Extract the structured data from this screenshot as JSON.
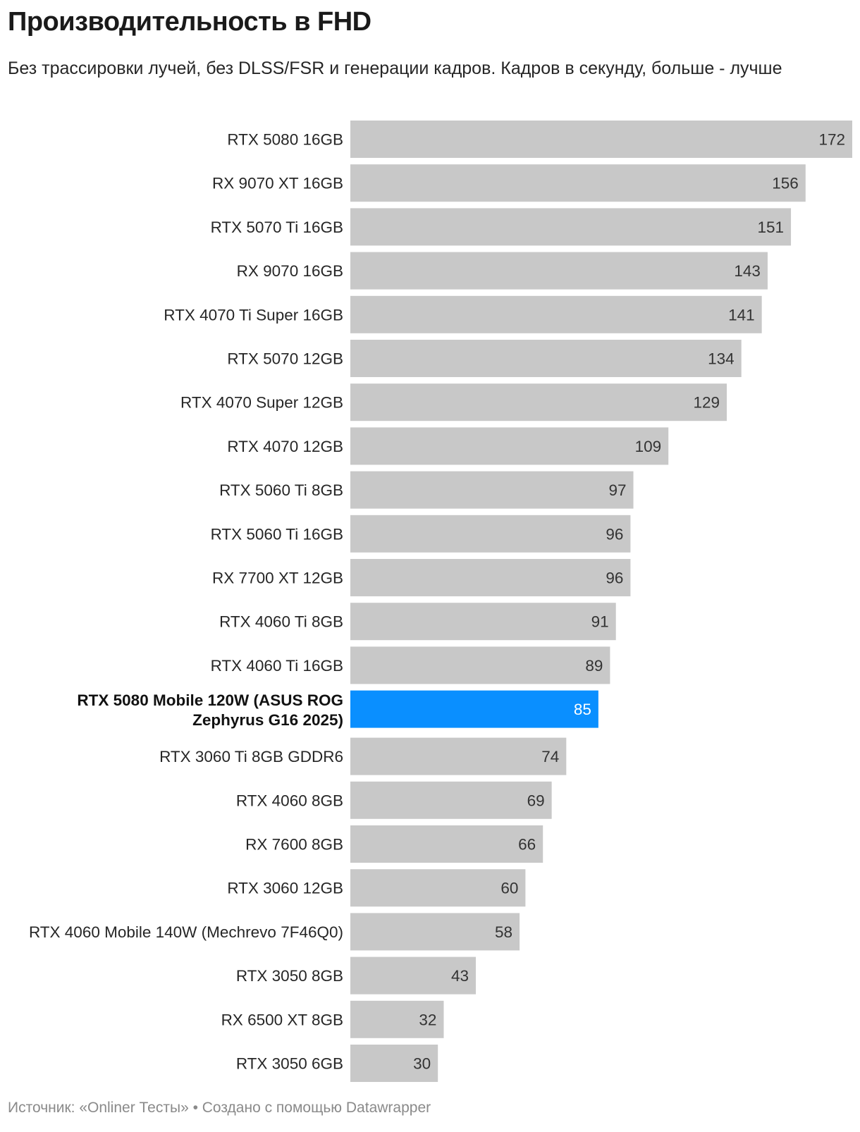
{
  "header": {
    "title": "Производительность в FHD",
    "subtitle": "Без трассировки лучей, без DLSS/FSR и генерации кадров. Кадров в секунду, больше - лучше"
  },
  "footer": {
    "text": "Источник: «Onliner Тесты» • Создано с помощью Datawrapper"
  },
  "colors": {
    "bar": "#c8c8c8",
    "highlight": "#0a8fff",
    "label": "#262626",
    "value_on_bar": "#333333",
    "value_on_highlight": "#ffffff"
  },
  "chart_data": {
    "type": "bar",
    "orientation": "horizontal",
    "highlight_index": 13,
    "xlim": [
      0,
      172
    ],
    "categories": [
      "RTX 5080 16GB",
      "RX 9070 XT 16GB",
      "RTX 5070 Ti 16GB",
      "RX 9070 16GB",
      "RTX 4070 Ti Super 16GB",
      "RTX 5070 12GB",
      "RTX 4070 Super 12GB",
      "RTX 4070 12GB",
      "RTX 5060 Ti 8GB",
      "RTX 5060 Ti 16GB",
      "RX 7700 XT 12GB",
      "RTX 4060 Ti 8GB",
      "RTX 4060 Ti 16GB",
      "RTX 5080 Mobile 120W (ASUS ROG Zephyrus G16 2025)",
      "RTX 3060 Ti 8GB GDDR6",
      "RTX 4060 8GB",
      "RX 7600 8GB",
      "RTX 3060 12GB",
      "RTX 4060 Mobile 140W (Mechrevo 7F46Q0)",
      "RTX 3050 8GB",
      "RX 6500 XT 8GB",
      "RTX 3050 6GB"
    ],
    "values": [
      172,
      156,
      151,
      143,
      141,
      134,
      129,
      109,
      97,
      96,
      96,
      91,
      89,
      85,
      74,
      69,
      66,
      60,
      58,
      43,
      32,
      30
    ]
  }
}
